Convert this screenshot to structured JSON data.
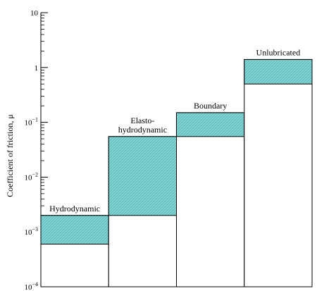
{
  "colors": {
    "band_fill": "#7fd3d3",
    "band_hatch": "#5fb3b3",
    "outline": "#000000",
    "background": "#ffffff"
  },
  "chart_data": {
    "type": "bar",
    "ylabel": "Coefficient of friction, μ",
    "yscale": "log",
    "ylim": [
      0.0001,
      10
    ],
    "y_ticks": [
      {
        "value": 10,
        "base": "10",
        "exp": ""
      },
      {
        "value": 1,
        "base": "1",
        "exp": ""
      },
      {
        "value": 0.1,
        "base": "10",
        "exp": "−1"
      },
      {
        "value": 0.01,
        "base": "10",
        "exp": "−2"
      },
      {
        "value": 0.001,
        "base": "10",
        "exp": "−3"
      },
      {
        "value": 0.0001,
        "base": "10",
        "exp": "−4"
      }
    ],
    "categories": [
      {
        "label": [
          "Hydrodynamic"
        ],
        "low": 0.0006,
        "high": 0.002
      },
      {
        "label": [
          "Elasto-",
          "hydrodynamic"
        ],
        "low": 0.002,
        "high": 0.055
      },
      {
        "label": [
          "Boundary"
        ],
        "low": 0.055,
        "high": 0.15
      },
      {
        "label": [
          "Unlubricated"
        ],
        "low": 0.5,
        "high": 1.4
      }
    ]
  }
}
